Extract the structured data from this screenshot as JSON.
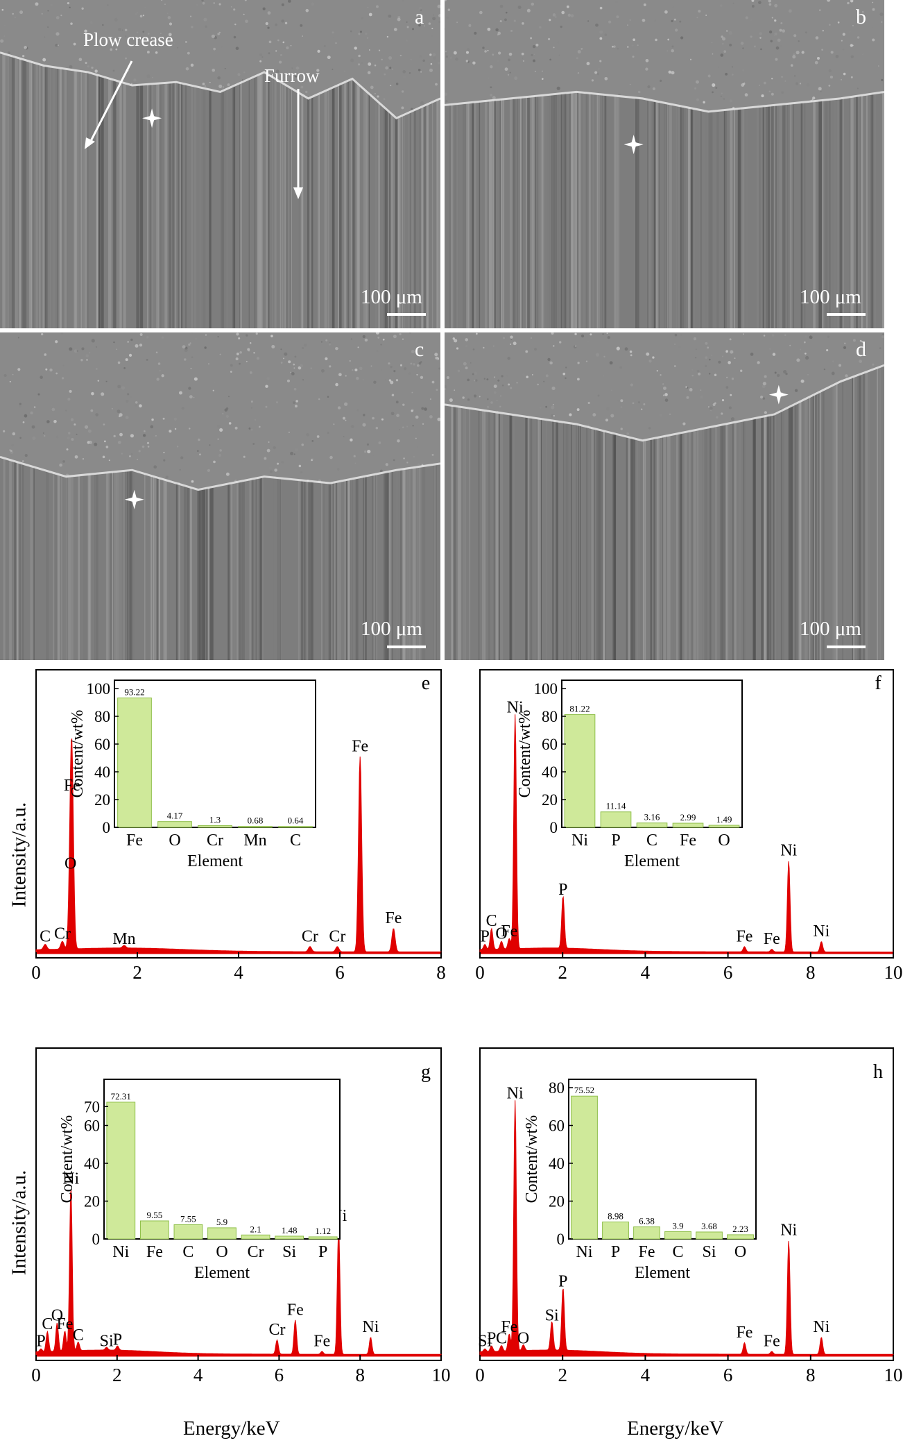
{
  "sem_panels": [
    {
      "letter": "a",
      "scale": "100 μm",
      "annotations": [
        "Plow crease",
        "Furrow"
      ]
    },
    {
      "letter": "b",
      "scale": "100 μm",
      "annotations": []
    },
    {
      "letter": "c",
      "scale": "100 μm",
      "annotations": []
    },
    {
      "letter": "d",
      "scale": "100 μm",
      "annotations": []
    }
  ],
  "y_axis_label": "Intensity/a.u.",
  "x_axis_label": "Energy/keV",
  "colors": {
    "spectrum": "#e00000",
    "inset_bar": "#cfe99a",
    "inset_bar_edge": "#8fbf4a"
  },
  "chart_data": [
    {
      "type": "area",
      "panel": "e",
      "xlabel": "Energy/keV",
      "ylabel": "Intensity/a.u.",
      "xlim": [
        0,
        8
      ],
      "xticks": [
        "0",
        "2",
        "4",
        "6",
        "8"
      ],
      "peaks": [
        {
          "x": 0.18,
          "h": 0.02,
          "label": "C"
        },
        {
          "x": 0.52,
          "h": 0.03,
          "label": "Cr"
        },
        {
          "x": 0.68,
          "h": 0.3,
          "label": "O"
        },
        {
          "x": 0.71,
          "h": 0.6,
          "label": "Fe"
        },
        {
          "x": 1.74,
          "h": 0.01,
          "label": "Mn"
        },
        {
          "x": 5.41,
          "h": 0.02,
          "label": "Cr"
        },
        {
          "x": 5.95,
          "h": 0.02,
          "label": "Cr"
        },
        {
          "x": 6.4,
          "h": 0.75,
          "label": "Fe"
        },
        {
          "x": 7.06,
          "h": 0.09,
          "label": "Fe"
        }
      ],
      "inset": {
        "type": "bar",
        "categories": [
          "Fe",
          "O",
          "Cr",
          "Mn",
          "C"
        ],
        "values": [
          93.22,
          4.17,
          1.3,
          0.68,
          0.64
        ],
        "labels": [
          "93.22",
          "4.17",
          "1.3",
          "0.68",
          "0.64"
        ],
        "xlabel": "Element",
        "ylabel": "Content/wt%",
        "ylim": [
          0,
          100
        ],
        "yticks": [
          "0",
          "20",
          "40",
          "60",
          "80",
          "100"
        ]
      }
    },
    {
      "type": "area",
      "panel": "f",
      "xlabel": "Energy/keV",
      "ylabel": "Intensity/a.u.",
      "xlim": [
        0,
        10
      ],
      "xticks": [
        "0",
        "2",
        "4",
        "6",
        "8",
        "10"
      ],
      "peaks": [
        {
          "x": 0.12,
          "h": 0.02,
          "label": "P"
        },
        {
          "x": 0.28,
          "h": 0.08,
          "label": "C"
        },
        {
          "x": 0.52,
          "h": 0.03,
          "label": "O"
        },
        {
          "x": 0.71,
          "h": 0.04,
          "label": "Fe"
        },
        {
          "x": 0.85,
          "h": 0.9,
          "label": "Ni"
        },
        {
          "x": 2.01,
          "h": 0.2,
          "label": "P"
        },
        {
          "x": 6.4,
          "h": 0.02,
          "label": "Fe"
        },
        {
          "x": 7.06,
          "h": 0.01,
          "label": "Fe"
        },
        {
          "x": 7.47,
          "h": 0.35,
          "label": "Ni"
        },
        {
          "x": 8.26,
          "h": 0.04,
          "label": "Ni"
        }
      ],
      "inset": {
        "type": "bar",
        "categories": [
          "Ni",
          "P",
          "C",
          "Fe",
          "O"
        ],
        "values": [
          81.22,
          11.14,
          3.16,
          2.99,
          1.49
        ],
        "labels": [
          "81.22",
          "11.14",
          "3.16",
          "2.99",
          "1.49"
        ],
        "xlabel": "Element",
        "ylabel": "Content/wt%",
        "ylim": [
          0,
          100
        ],
        "yticks": [
          "0",
          "20",
          "40",
          "60",
          "80",
          "100"
        ]
      }
    },
    {
      "type": "area",
      "panel": "g",
      "xlabel": "Energy/keV",
      "ylabel": "Intensity/a.u.",
      "xlim": [
        0,
        10
      ],
      "xticks": [
        "0",
        "2",
        "4",
        "6",
        "8",
        "10"
      ],
      "peaks": [
        {
          "x": 0.12,
          "h": 0.01,
          "label": "P"
        },
        {
          "x": 0.28,
          "h": 0.07,
          "label": "C"
        },
        {
          "x": 0.52,
          "h": 0.1,
          "label": "O"
        },
        {
          "x": 0.71,
          "h": 0.07,
          "label": "Fe"
        },
        {
          "x": 0.86,
          "h": 0.58,
          "label": "Ni"
        },
        {
          "x": 1.04,
          "h": 0.03,
          "label": "C"
        },
        {
          "x": 1.74,
          "h": 0.01,
          "label": "Si"
        },
        {
          "x": 2.01,
          "h": 0.015,
          "label": "P"
        },
        {
          "x": 5.95,
          "h": 0.05,
          "label": "Cr"
        },
        {
          "x": 6.4,
          "h": 0.12,
          "label": "Fe"
        },
        {
          "x": 7.06,
          "h": 0.01,
          "label": "Fe"
        },
        {
          "x": 7.47,
          "h": 0.45,
          "label": "Ni"
        },
        {
          "x": 8.26,
          "h": 0.06,
          "label": "Ni"
        }
      ],
      "inset": {
        "type": "bar",
        "categories": [
          "Ni",
          "Fe",
          "C",
          "O",
          "Cr",
          "Si",
          "P"
        ],
        "values": [
          72.31,
          9.55,
          7.55,
          5.9,
          2.1,
          1.48,
          1.12
        ],
        "labels": [
          "72.31",
          "9.55",
          "7.55",
          "5.9",
          "2.1",
          "1.48",
          "1.12"
        ],
        "xlabel": "Element",
        "ylabel": "Content/wt%",
        "ylim": [
          0,
          80
        ],
        "yticks": [
          "0",
          "20",
          "40",
          "60",
          "70"
        ]
      }
    },
    {
      "type": "area",
      "panel": "h",
      "xlabel": "Energy/keV",
      "ylabel": "Intensity/a.u.",
      "xlim": [
        0,
        10
      ],
      "xticks": [
        "0",
        "2",
        "4",
        "6",
        "8",
        "10"
      ],
      "peaks": [
        {
          "x": 0.12,
          "h": 0.01,
          "label": "Si"
        },
        {
          "x": 0.28,
          "h": 0.02,
          "label": "P"
        },
        {
          "x": 0.52,
          "h": 0.02,
          "label": "C"
        },
        {
          "x": 0.71,
          "h": 0.06,
          "label": "Fe"
        },
        {
          "x": 0.85,
          "h": 0.88,
          "label": "Ni"
        },
        {
          "x": 1.05,
          "h": 0.02,
          "label": "O"
        },
        {
          "x": 1.74,
          "h": 0.1,
          "label": "Si"
        },
        {
          "x": 2.01,
          "h": 0.22,
          "label": "P"
        },
        {
          "x": 6.4,
          "h": 0.04,
          "label": "Fe"
        },
        {
          "x": 7.06,
          "h": 0.01,
          "label": "Fe"
        },
        {
          "x": 7.47,
          "h": 0.4,
          "label": "Ni"
        },
        {
          "x": 8.26,
          "h": 0.06,
          "label": "Ni"
        }
      ],
      "inset": {
        "type": "bar",
        "categories": [
          "Ni",
          "P",
          "Fe",
          "C",
          "Si",
          "O"
        ],
        "values": [
          75.52,
          8.98,
          6.38,
          3.9,
          3.68,
          2.23
        ],
        "labels": [
          "75.52",
          "8.98",
          "6.38",
          "3.9",
          "3.68",
          "2.23"
        ],
        "xlabel": "Element",
        "ylabel": "Content/wt%",
        "ylim": [
          0,
          80
        ],
        "yticks": [
          "0",
          "20",
          "40",
          "60",
          "80"
        ]
      }
    }
  ]
}
